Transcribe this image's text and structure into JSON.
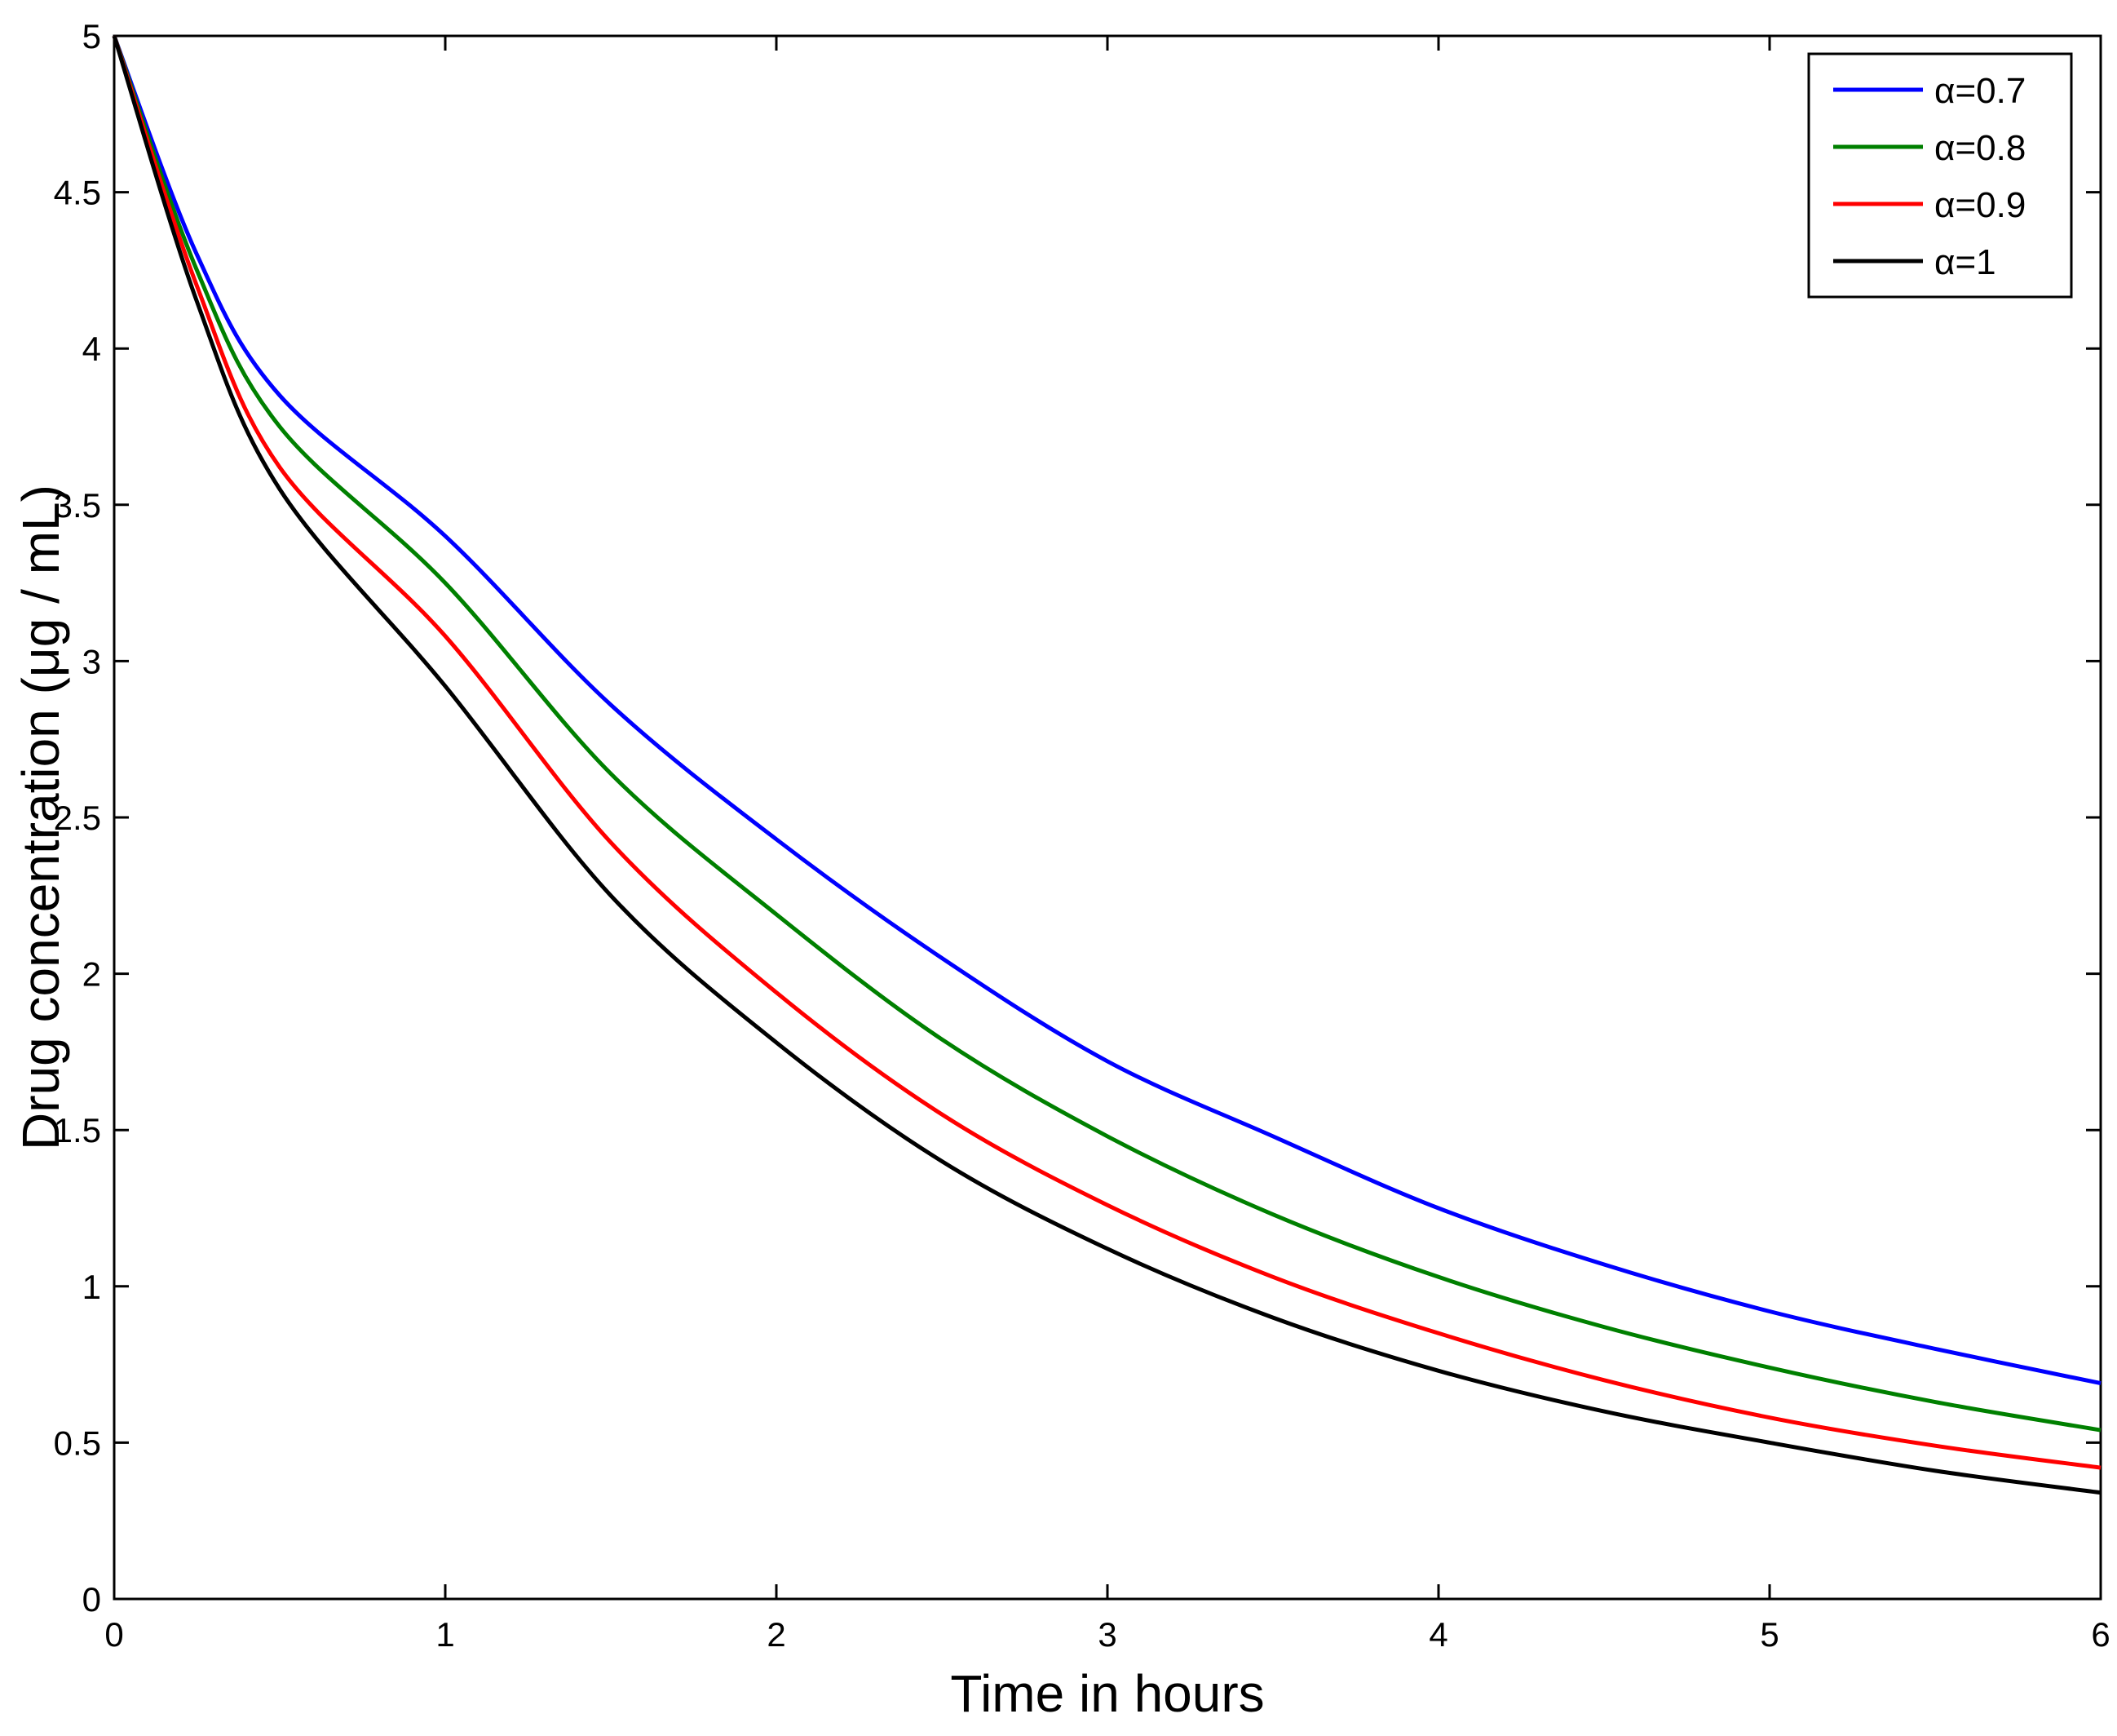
{
  "chart_data": {
    "type": "line",
    "title": "",
    "xlabel": "Time in hours",
    "ylabel": "Drug concentration (μg / mL)",
    "xlim": [
      0,
      6
    ],
    "ylim": [
      0,
      5
    ],
    "x_ticks": [
      0,
      1,
      2,
      3,
      4,
      5,
      6
    ],
    "x_tick_labels": [
      "0",
      "1",
      "2",
      "3",
      "4",
      "5",
      "6"
    ],
    "y_ticks": [
      0,
      0.5,
      1,
      1.5,
      2,
      2.5,
      3,
      3.5,
      4,
      4.5,
      5
    ],
    "y_tick_labels": [
      "0",
      "0.5",
      "1",
      "1.5",
      "2",
      "2.5",
      "3",
      "3.5",
      "4",
      "4.5",
      "5"
    ],
    "grid": false,
    "legend_position": "top-right",
    "x": [
      0,
      0.25,
      0.5,
      1,
      1.5,
      2,
      2.5,
      3,
      3.5,
      4,
      4.5,
      5,
      5.5,
      6
    ],
    "series": [
      {
        "name": "α=0.7",
        "color": "#0000ff",
        "values": [
          5.0,
          4.3,
          3.85,
          3.4,
          2.86,
          2.43,
          2.05,
          1.72,
          1.48,
          1.25,
          1.07,
          0.92,
          0.8,
          0.69
        ]
      },
      {
        "name": "α=0.8",
        "color": "#008000",
        "values": [
          5.0,
          4.25,
          3.75,
          3.25,
          2.64,
          2.19,
          1.79,
          1.48,
          1.23,
          1.03,
          0.87,
          0.74,
          0.63,
          0.54
        ]
      },
      {
        "name": "α=0.9",
        "color": "#ff0000",
        "values": [
          5.0,
          4.2,
          3.62,
          3.08,
          2.42,
          1.94,
          1.55,
          1.26,
          1.03,
          0.85,
          0.7,
          0.58,
          0.49,
          0.42
        ]
      },
      {
        "name": "α=1",
        "color": "#000000",
        "values": [
          5.0,
          4.15,
          3.55,
          2.92,
          2.25,
          1.78,
          1.4,
          1.12,
          0.9,
          0.73,
          0.6,
          0.5,
          0.41,
          0.34
        ]
      }
    ]
  }
}
